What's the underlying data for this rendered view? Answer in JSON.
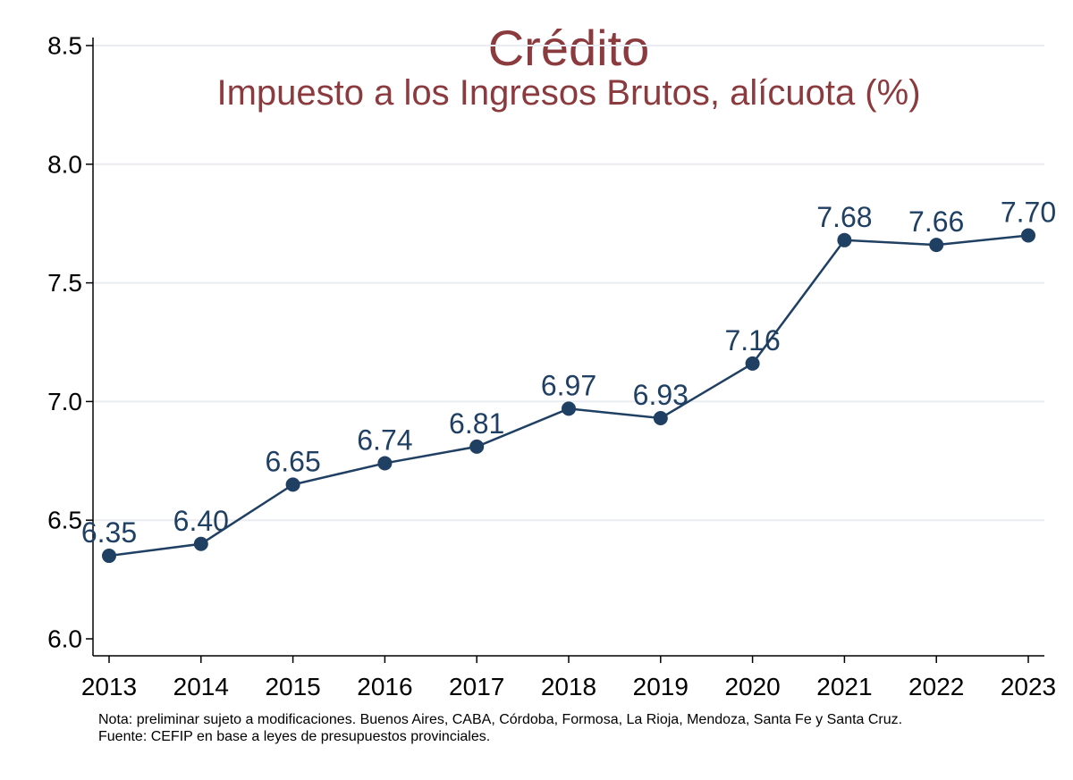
{
  "chart_data": {
    "type": "line",
    "title": "Crédito",
    "subtitle": "Impuesto a los Ingresos Brutos, alícuota (%)",
    "xlabel": "",
    "ylabel": "",
    "x": [
      2013,
      2014,
      2015,
      2016,
      2017,
      2018,
      2019,
      2020,
      2021,
      2022,
      2023
    ],
    "series": [
      {
        "values": [
          6.35,
          6.4,
          6.65,
          6.74,
          6.81,
          6.97,
          6.93,
          7.16,
          7.68,
          7.66,
          7.7
        ],
        "labels": [
          "6.35",
          "6.40",
          "6.65",
          "6.74",
          "6.81",
          "6.97",
          "6.93",
          "7.16",
          "7.68",
          "7.66",
          "7.70"
        ]
      }
    ],
    "y_ticks": [
      "6.0",
      "6.5",
      "7.0",
      "7.5",
      "8.0",
      "8.5"
    ],
    "x_ticks": [
      "2013",
      "2014",
      "2015",
      "2016",
      "2017",
      "2018",
      "2019",
      "2020",
      "2021",
      "2022",
      "2023"
    ],
    "ylim": [
      6.0,
      8.5
    ],
    "grid": true,
    "line_color": "#1f3f63",
    "title_color": "#8b3a3e"
  },
  "notes": {
    "line1": "Nota: preliminar sujeto a modificaciones. Buenos Aires, CABA, Córdoba, Formosa, La Rioja, Mendoza, Santa Fe y Santa Cruz.",
    "line2": "Fuente: CEFIP en base a leyes de presupuestos provinciales."
  }
}
